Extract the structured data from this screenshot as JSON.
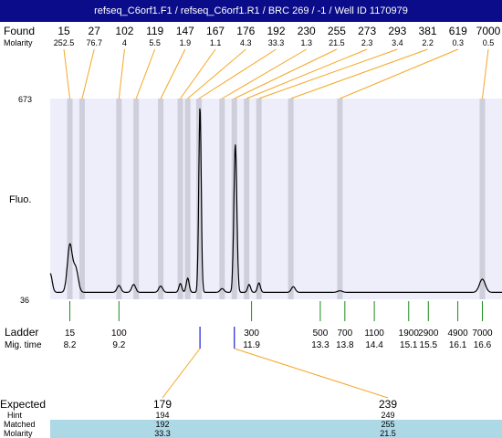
{
  "title": "refseq_C6orf1.F1 / refseq_C6orf1.R1 / BRC 269 / -1 / Well ID 1170979",
  "labels": {
    "found": "Found",
    "molarity": "Molarity",
    "fluo": "Fluo.",
    "ladder": "Ladder",
    "mig_time": "Mig. time",
    "expected": "Expected",
    "hint": "Hint",
    "matched": "Matched",
    "molarity_bottom": "Molarity"
  },
  "colors": {
    "title_bg": "#0b0c8a",
    "plot_bg": "#eeeefa",
    "band": "#cfcfdc",
    "connector": "#f5a623",
    "ladder_tick": "#1a8a1a",
    "expected_tick": "#1c1cd8",
    "table_highlight": "#add8e6"
  },
  "chart_data": {
    "type": "line",
    "title": "refseq_C6orf1.F1 / refseq_C6orf1.R1 / BRC 269 / -1 / Well ID 1170979",
    "ylabel": "Fluo.",
    "xlabel": "Mig. time",
    "y_ticks": [
      "673",
      "36"
    ],
    "ylim": [
      36,
      673
    ],
    "xlim": [
      7.8,
      17.0
    ],
    "grid": false,
    "found_peaks": [
      {
        "size": "15",
        "molarity": "252.5",
        "time": 8.2
      },
      {
        "size": "27",
        "molarity": "76.7",
        "time": 8.45
      },
      {
        "size": "102",
        "molarity": "4",
        "time": 9.2
      },
      {
        "size": "119",
        "molarity": "5.5",
        "time": 9.55
      },
      {
        "size": "147",
        "molarity": "1.9",
        "time": 10.05
      },
      {
        "size": "167",
        "molarity": "1.1",
        "time": 10.45
      },
      {
        "size": "176",
        "molarity": "4.3",
        "time": 10.6
      },
      {
        "size": "192",
        "molarity": "33.3",
        "time": 10.83
      },
      {
        "size": "230",
        "molarity": "1.3",
        "time": 11.3
      },
      {
        "size": "255",
        "molarity": "21.5",
        "time": 11.55
      },
      {
        "size": "273",
        "molarity": "2.3",
        "time": 11.8
      },
      {
        "size": "293",
        "molarity": "3.4",
        "time": 12.05
      },
      {
        "size": "381",
        "molarity": "2.2",
        "time": 12.7
      },
      {
        "size": "619",
        "molarity": "0.3",
        "time": 13.7
      },
      {
        "size": "7000",
        "molarity": "0.5",
        "time": 16.6
      }
    ],
    "ladder": [
      {
        "size": "15",
        "time": "8.2",
        "t": 8.2
      },
      {
        "size": "100",
        "time": "9.2",
        "t": 9.2
      },
      {
        "size": "300",
        "time": "11.9",
        "t": 11.9
      },
      {
        "size": "500",
        "time": "13.3",
        "t": 13.3
      },
      {
        "size": "700",
        "time": "13.8",
        "t": 13.8
      },
      {
        "size": "1100",
        "time": "14.4",
        "t": 14.4
      },
      {
        "size": "1900",
        "time": "15.1",
        "t": 15.1
      },
      {
        "size": "2900",
        "time": "15.5",
        "t": 15.5
      },
      {
        "size": "4900",
        "time": "16.1",
        "t": 16.1
      },
      {
        "size": "7000",
        "time": "16.6",
        "t": 16.6
      }
    ],
    "expected": [
      {
        "expected": "179",
        "hint": "194",
        "matched": "192",
        "molarity": "33.3",
        "time": 10.85
      },
      {
        "expected": "239",
        "hint": "249",
        "matched": "255",
        "molarity": "21.5",
        "time": 11.55
      }
    ],
    "trace": {
      "baseline": 58,
      "peaks": [
        {
          "t": 7.8,
          "h": 60,
          "w": 0.04
        },
        {
          "t": 8.2,
          "h": 150,
          "w": 0.05
        },
        {
          "t": 8.32,
          "h": 75,
          "w": 0.05
        },
        {
          "t": 9.2,
          "h": 22,
          "w": 0.04
        },
        {
          "t": 9.5,
          "h": 25,
          "w": 0.04
        },
        {
          "t": 10.05,
          "h": 20,
          "w": 0.04
        },
        {
          "t": 10.45,
          "h": 28,
          "w": 0.03
        },
        {
          "t": 10.6,
          "h": 45,
          "w": 0.03
        },
        {
          "t": 10.85,
          "h": 590,
          "w": 0.025
        },
        {
          "t": 11.3,
          "h": 12,
          "w": 0.04
        },
        {
          "t": 11.57,
          "h": 470,
          "w": 0.03
        },
        {
          "t": 11.85,
          "h": 25,
          "w": 0.03
        },
        {
          "t": 12.05,
          "h": 30,
          "w": 0.03
        },
        {
          "t": 12.75,
          "h": 18,
          "w": 0.04
        },
        {
          "t": 13.7,
          "h": 5,
          "w": 0.05
        },
        {
          "t": 16.6,
          "h": 42,
          "w": 0.06
        }
      ]
    }
  }
}
